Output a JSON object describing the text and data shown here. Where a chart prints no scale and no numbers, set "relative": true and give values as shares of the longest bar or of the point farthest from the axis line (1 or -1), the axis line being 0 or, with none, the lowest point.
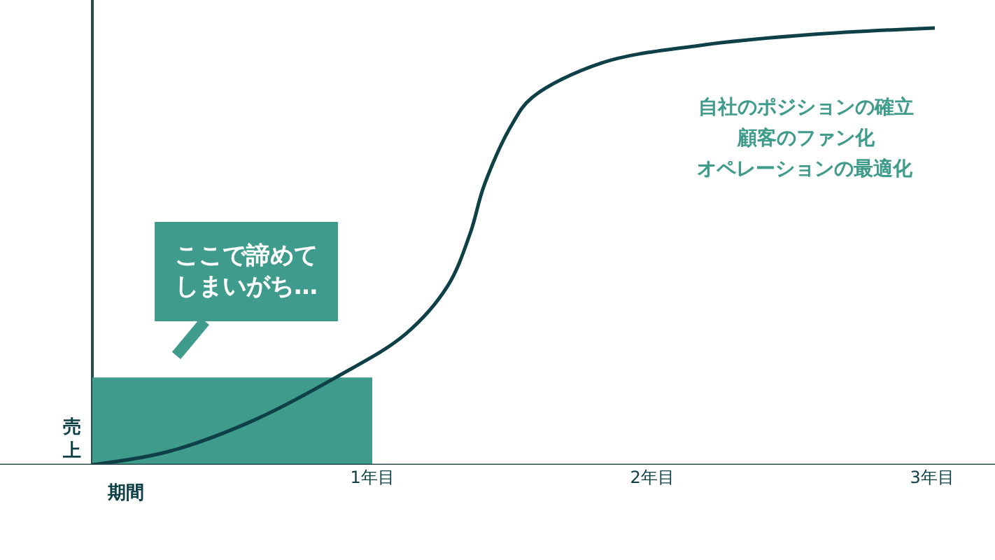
{
  "chart_data": {
    "type": "line",
    "relative": true,
    "xlabel": "期間",
    "ylabel": "売上",
    "xlim": [
      -0.33,
      3.225
    ],
    "xticks": [
      {
        "value": 1,
        "label": "1年目"
      },
      {
        "value": 2,
        "label": "2年目"
      },
      {
        "value": 3,
        "label": "3年目"
      }
    ],
    "legend": false,
    "marker": "none",
    "line_style": "solid",
    "series": [
      {
        "type": "area",
        "color": "#3f9b8b",
        "x": [
          0,
          1
        ],
        "values": [
          0.2,
          0.2
        ]
      },
      {
        "color": "#0d4047",
        "x": [
          0,
          0.27,
          0.57,
          0.87,
          1.12,
          1.27,
          1.35,
          1.4,
          1.5,
          1.57,
          1.82,
          2.17,
          2.57,
          3.01
        ],
        "values": [
          0,
          0.03,
          0.1,
          0.2,
          0.3,
          0.41,
          0.53,
          0.64,
          0.78,
          0.84,
          0.92,
          0.96,
          0.985,
          1
        ]
      }
    ],
    "annotations": [
      "ここで諦めてしまいがち…",
      "自社のポジションの確立",
      "顧客のファン化",
      "オペレーションの最適化"
    ]
  }
}
